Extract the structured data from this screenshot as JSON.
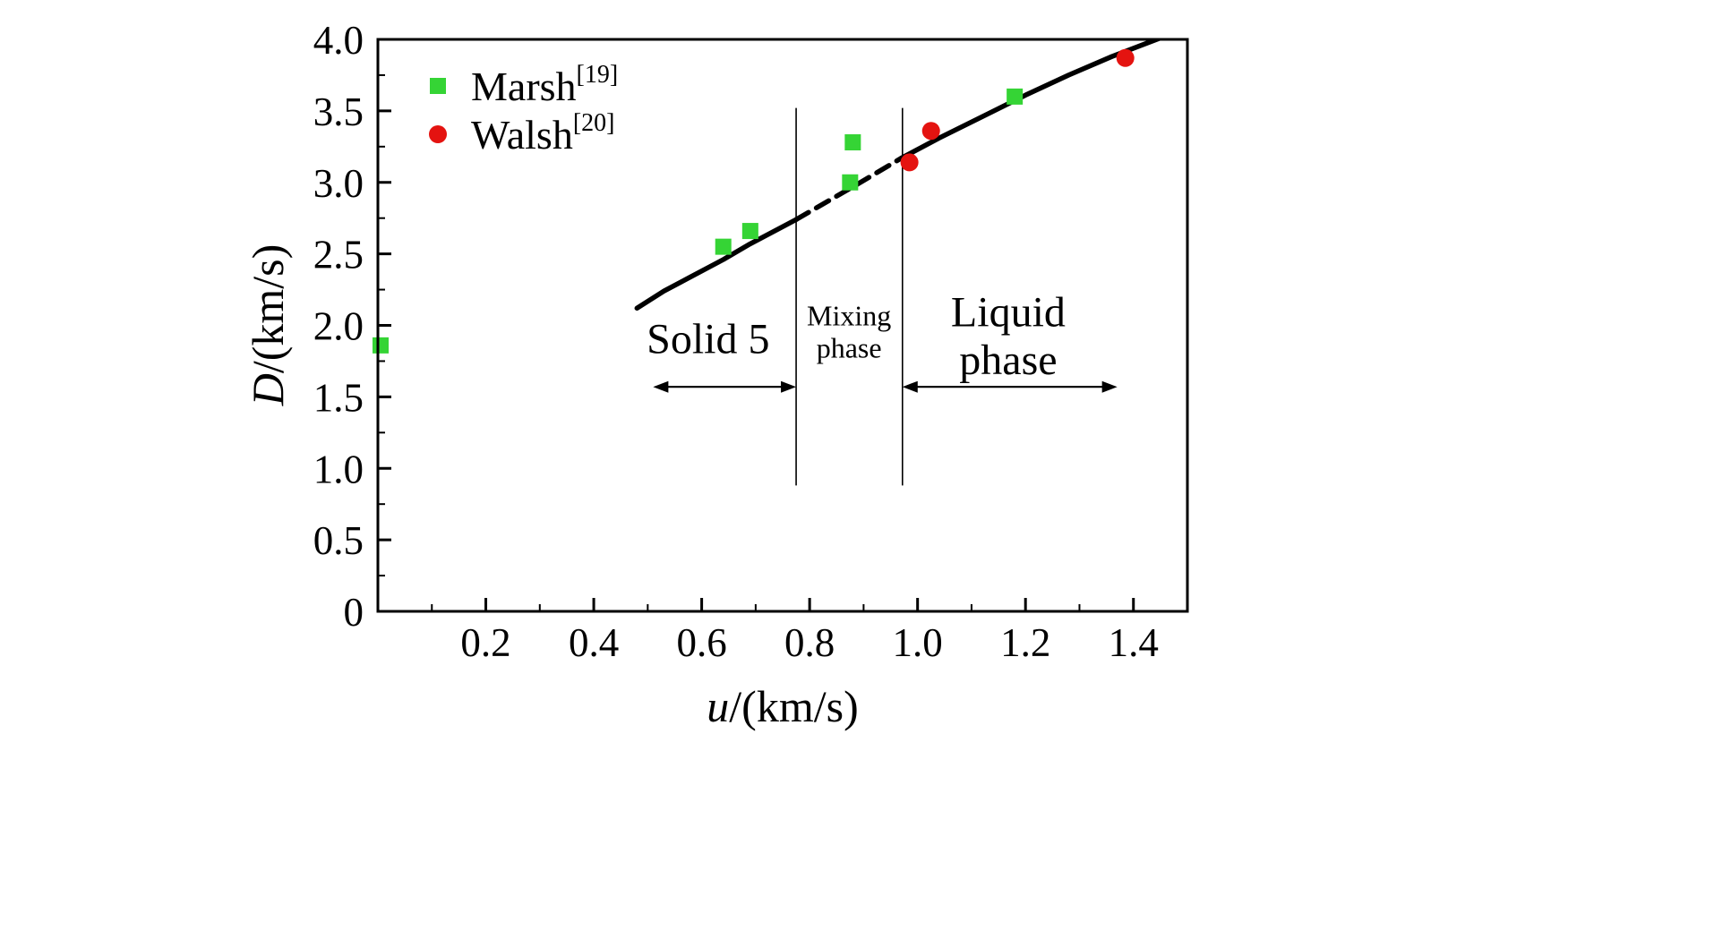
{
  "figure": {
    "background": "#ffffff"
  },
  "chart_data": {
    "type": "scatter",
    "title": "",
    "xlabel": "u/(km/s)",
    "xlabel_italic": "u",
    "xlabel_rest": "/(km/s)",
    "ylabel": "D/(km/s)",
    "ylabel_italic": "D",
    "ylabel_rest": "/(km/s)",
    "xlim": [
      0,
      1.5
    ],
    "ylim": [
      0,
      4.0
    ],
    "grid": false,
    "legend_position": "top-left-inside",
    "x_major_ticks": [
      0.2,
      0.4,
      0.6,
      0.8,
      1.0,
      1.2,
      1.4
    ],
    "x_tick_labels": [
      "0.2",
      "0.4",
      "0.6",
      "0.8",
      "1.0",
      "1.2",
      "1.4"
    ],
    "x_minor_step": 0.1,
    "y_major_ticks": [
      0,
      0.5,
      1.0,
      1.5,
      2.0,
      2.5,
      3.0,
      3.5,
      4.0
    ],
    "y_tick_labels": [
      "0",
      "0.5",
      "1.0",
      "1.5",
      "2.0",
      "2.5",
      "3.0",
      "3.5",
      "4.0"
    ],
    "y_minor_step": 0.25,
    "legend": [
      {
        "name": "Marsh",
        "ref": "[19]",
        "marker": "square",
        "color": "#35d435"
      },
      {
        "name": "Walsh",
        "ref": "[20]",
        "marker": "circle",
        "color": "#e41310"
      }
    ],
    "series": [
      {
        "name": "Marsh",
        "marker": "square",
        "color": "#35d435",
        "points": [
          [
            0.005,
            1.86
          ],
          [
            0.64,
            2.55
          ],
          [
            0.69,
            2.66
          ],
          [
            0.875,
            3.0
          ],
          [
            0.88,
            3.28
          ],
          [
            1.18,
            3.6
          ]
        ]
      },
      {
        "name": "Walsh",
        "marker": "circle",
        "color": "#e41310",
        "points": [
          [
            0.985,
            3.14
          ],
          [
            1.025,
            3.36
          ],
          [
            1.385,
            3.87
          ]
        ]
      }
    ],
    "hugoniot_curve": {
      "color": "#000000",
      "segments": [
        {
          "style": "solid",
          "points": [
            [
              0.48,
              2.12
            ],
            [
              0.53,
              2.24
            ],
            [
              0.58,
              2.34
            ],
            [
              0.64,
              2.46
            ],
            [
              0.69,
              2.57
            ],
            [
              0.73,
              2.65
            ],
            [
              0.775,
              2.74
            ]
          ]
        },
        {
          "style": "dashed",
          "points": [
            [
              0.775,
              2.74
            ],
            [
              0.83,
              2.86
            ],
            [
              0.89,
              2.99
            ],
            [
              0.97,
              3.17
            ]
          ]
        },
        {
          "style": "solid",
          "points": [
            [
              0.97,
              3.17
            ],
            [
              1.04,
              3.31
            ],
            [
              1.12,
              3.46
            ],
            [
              1.2,
              3.61
            ],
            [
              1.28,
              3.75
            ],
            [
              1.36,
              3.88
            ],
            [
              1.45,
              4.01
            ]
          ]
        }
      ]
    },
    "phase_boundaries": {
      "x_values": [
        0.775,
        0.972
      ],
      "d_range": [
        0.88,
        3.52
      ]
    },
    "region_labels": [
      {
        "id": "solid-5",
        "lines": [
          "Solid 5"
        ],
        "x": 0.612,
        "y": 1.9,
        "font_size": 48
      },
      {
        "id": "mixing-phase",
        "lines": [
          "Mixing",
          "phase"
        ],
        "x": 0.873,
        "y": 1.95,
        "font_size": 32
      },
      {
        "id": "liquid-phase",
        "lines": [
          "Liquid",
          "phase"
        ],
        "x": 1.168,
        "y": 1.92,
        "font_size": 48
      }
    ],
    "region_arrows": [
      {
        "x1": 0.51,
        "x2": 0.775,
        "y": 1.57
      },
      {
        "x1": 0.972,
        "x2": 1.37,
        "y": 1.57
      }
    ]
  }
}
